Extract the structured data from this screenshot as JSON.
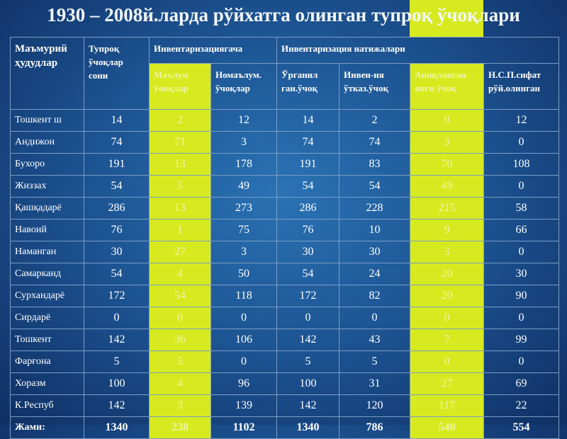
{
  "header": {
    "title": "1930 – 2008й.ларда рўйхатга олинган тупроқ ўчоқлари"
  },
  "table": {
    "header_top": [
      "Маъмурий ҳудудлар",
      "Тупроқ ўчоқлар сони",
      "Инвентаризациягача",
      "Инвентаризация натижалари"
    ],
    "header_sub": [
      "Маълум ўчоқлар",
      "Номаълум. ўчоқлар",
      "Ўрганил ган.ўчоқ",
      "Инвен-ия ўтказ.ўчоқ",
      "Аниқланган янги ўчоқ",
      "Н.С.П.сифат рўй.олинган"
    ],
    "rows": [
      [
        "Тошкент ш",
        14,
        2,
        12,
        14,
        2,
        0,
        12
      ],
      [
        "Андижон",
        74,
        71,
        3,
        74,
        74,
        3,
        0
      ],
      [
        "Бухоро",
        191,
        13,
        178,
        191,
        83,
        70,
        108
      ],
      [
        "Жиззах",
        54,
        5,
        49,
        54,
        54,
        49,
        0
      ],
      [
        "Қашқадарё",
        286,
        13,
        273,
        286,
        228,
        215,
        58
      ],
      [
        "Навоий",
        76,
        1,
        75,
        76,
        10,
        9,
        66
      ],
      [
        "Наманган",
        30,
        27,
        3,
        30,
        30,
        3,
        0
      ],
      [
        "Самарканд",
        54,
        4,
        50,
        54,
        24,
        20,
        30
      ],
      [
        "Сурхандарё",
        172,
        54,
        118,
        172,
        82,
        20,
        90
      ],
      [
        "Сирдарё",
        0,
        0,
        0,
        0,
        0,
        0,
        0
      ],
      [
        "Тошкент",
        142,
        36,
        106,
        142,
        43,
        7,
        99
      ],
      [
        "Фарғона",
        5,
        5,
        0,
        5,
        5,
        0,
        0
      ],
      [
        "Хоразм",
        100,
        4,
        96,
        100,
        31,
        27,
        69
      ],
      [
        "К.Респуб",
        142,
        3,
        139,
        142,
        120,
        117,
        22
      ]
    ],
    "total": [
      "Жами:",
      1340,
      238,
      1102,
      1340,
      786,
      540,
      554
    ]
  }
}
